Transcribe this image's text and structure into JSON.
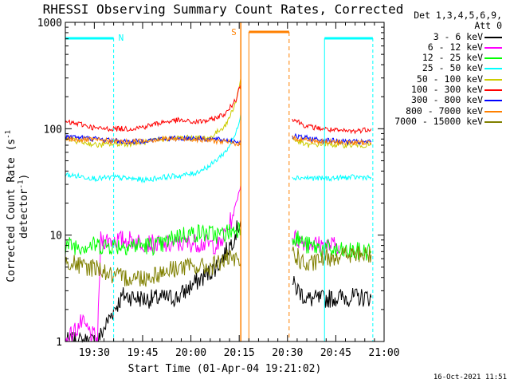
{
  "chart_data": {
    "type": "line",
    "title": "RHESSI Observing Summary Count Rates, Corrected",
    "xlabel": "Start Time (01-Apr-04 19:21:02)",
    "ylabel_main": "Corrected Count Rate (s",
    "ylabel_sup1": "-1",
    "ylabel_mid": " detector",
    "ylabel_sup2": "-1",
    "ylabel_end": ")",
    "yscale": "log",
    "ylim": [
      1,
      1000
    ],
    "xlim_minutes": [
      0,
      99
    ],
    "ytick_labels": [
      "1",
      "10",
      "100",
      "1000"
    ],
    "xtick_labels": [
      "19:30",
      "19:45",
      "20:00",
      "20:15",
      "20:30",
      "20:45",
      "21:00"
    ],
    "legend_header": [
      "Det 1,3,4,5,6,9,",
      "Att 0"
    ],
    "legend_position": "right",
    "timestamp": "16-Oct-2021 11:51",
    "flags": [
      {
        "label": "N",
        "color": "#00ffff"
      },
      {
        "label": "S",
        "color": "#ff8000"
      }
    ],
    "series": [
      {
        "name": "3 - 6 keV",
        "color": "#000000",
        "points": [
          [
            0,
            1.0
          ],
          [
            10,
            1.0
          ],
          [
            15,
            2.0
          ],
          [
            18,
            2.7
          ],
          [
            25,
            2.5
          ],
          [
            35,
            2.6
          ],
          [
            40,
            3.5
          ],
          [
            45,
            4.5
          ],
          [
            48,
            5.5
          ],
          [
            52,
            9.0
          ],
          [
            54.5,
            14.0
          ],
          [
            70.5,
            3.5
          ],
          [
            75,
            2.5
          ],
          [
            80,
            2.5
          ],
          [
            85,
            2.6
          ],
          [
            95,
            2.6
          ]
        ]
      },
      {
        "name": "6 - 12 keV",
        "color": "#ff00ff",
        "points": [
          [
            0,
            1.0
          ],
          [
            5,
            1.5
          ],
          [
            10,
            1.0
          ],
          [
            11,
            9.0
          ],
          [
            20,
            9.0
          ],
          [
            30,
            8.0
          ],
          [
            40,
            8.5
          ],
          [
            48,
            8.0
          ],
          [
            52,
            15.0
          ],
          [
            54.5,
            30.0
          ],
          [
            70.5,
            9.5
          ],
          [
            75,
            8.5
          ],
          [
            80,
            8.0
          ],
          [
            85,
            8.0
          ]
        ]
      },
      {
        "name": "12 - 25 keV",
        "color": "#00ff00",
        "points": [
          [
            0,
            8.0
          ],
          [
            10,
            8.0
          ],
          [
            20,
            8.0
          ],
          [
            30,
            8.0
          ],
          [
            35,
            10.0
          ],
          [
            42,
            10.5
          ],
          [
            48,
            10.0
          ],
          [
            52,
            11.0
          ],
          [
            54.5,
            12.0
          ],
          [
            70.5,
            10.0
          ],
          [
            75,
            8.0
          ],
          [
            80,
            7.5
          ],
          [
            85,
            7.0
          ],
          [
            90,
            7.0
          ],
          [
            95,
            7.0
          ]
        ]
      },
      {
        "name": "25 - 50 keV",
        "color": "#00ffff",
        "points": [
          [
            0,
            37.0
          ],
          [
            10,
            34.0
          ],
          [
            15,
            35.0
          ],
          [
            25,
            33.0
          ],
          [
            30,
            35.0
          ],
          [
            35,
            36.0
          ],
          [
            40,
            38.0
          ],
          [
            45,
            45.0
          ],
          [
            50,
            62.0
          ],
          [
            53,
            90.0
          ],
          [
            54.5,
            140.0
          ],
          [
            70.5,
            35.0
          ],
          [
            80,
            34.0
          ],
          [
            90,
            35.0
          ],
          [
            95,
            35.0
          ]
        ]
      },
      {
        "name": "50 - 100 keV",
        "color": "#cccc00",
        "points": [
          [
            0,
            80.0
          ],
          [
            5,
            75.0
          ],
          [
            10,
            70.0
          ],
          [
            15,
            72.0
          ],
          [
            20,
            72.0
          ],
          [
            25,
            75.0
          ],
          [
            30,
            80.0
          ],
          [
            35,
            82.0
          ],
          [
            40,
            82.0
          ],
          [
            45,
            82.0
          ],
          [
            50,
            110.0
          ],
          [
            53,
            180.0
          ],
          [
            54.5,
            300.0
          ],
          [
            70.5,
            80.0
          ],
          [
            75,
            70.0
          ],
          [
            80,
            72.0
          ],
          [
            85,
            70.0
          ],
          [
            90,
            70.0
          ],
          [
            95,
            70.0
          ]
        ]
      },
      {
        "name": "100 - 300 keV",
        "color": "#ff0000",
        "points": [
          [
            0,
            115.0
          ],
          [
            5,
            110.0
          ],
          [
            10,
            100.0
          ],
          [
            15,
            100.0
          ],
          [
            20,
            100.0
          ],
          [
            25,
            105.0
          ],
          [
            30,
            115.0
          ],
          [
            35,
            120.0
          ],
          [
            40,
            115.0
          ],
          [
            45,
            120.0
          ],
          [
            50,
            140.0
          ],
          [
            53,
            190.0
          ],
          [
            54.5,
            270.0
          ],
          [
            70.5,
            125.0
          ],
          [
            75,
            105.0
          ],
          [
            80,
            100.0
          ],
          [
            85,
            95.0
          ],
          [
            90,
            95.0
          ],
          [
            95,
            100.0
          ]
        ]
      },
      {
        "name": "300 - 800 keV",
        "color": "#0000ff",
        "points": [
          [
            0,
            85.0
          ],
          [
            10,
            80.0
          ],
          [
            20,
            75.0
          ],
          [
            30,
            80.0
          ],
          [
            40,
            82.0
          ],
          [
            50,
            78.0
          ],
          [
            54.5,
            75.0
          ],
          [
            70.5,
            85.0
          ],
          [
            80,
            78.0
          ],
          [
            90,
            75.0
          ],
          [
            95,
            75.0
          ]
        ]
      },
      {
        "name": "800 - 7000 keV",
        "color": "#ff8000",
        "points": [
          [
            0,
            80.0
          ],
          [
            10,
            78.0
          ],
          [
            20,
            75.0
          ],
          [
            30,
            80.0
          ],
          [
            40,
            80.0
          ],
          [
            50,
            75.0
          ],
          [
            54.5,
            72.0
          ],
          [
            70.5,
            82.0
          ],
          [
            80,
            75.0
          ],
          [
            90,
            74.0
          ],
          [
            95,
            74.0
          ]
        ]
      },
      {
        "name": "7000 - 15000 keV",
        "color": "#808000",
        "points": [
          [
            0,
            6.0
          ],
          [
            5,
            5.0
          ],
          [
            10,
            5.0
          ],
          [
            15,
            4.0
          ],
          [
            25,
            4.0
          ],
          [
            35,
            5.0
          ],
          [
            45,
            5.0
          ],
          [
            50,
            6.0
          ],
          [
            54.5,
            5.5
          ],
          [
            70.5,
            7.0
          ],
          [
            75,
            5.0
          ],
          [
            80,
            6.0
          ],
          [
            85,
            6.5
          ],
          [
            90,
            6.5
          ],
          [
            95,
            6.5
          ]
        ]
      }
    ]
  }
}
